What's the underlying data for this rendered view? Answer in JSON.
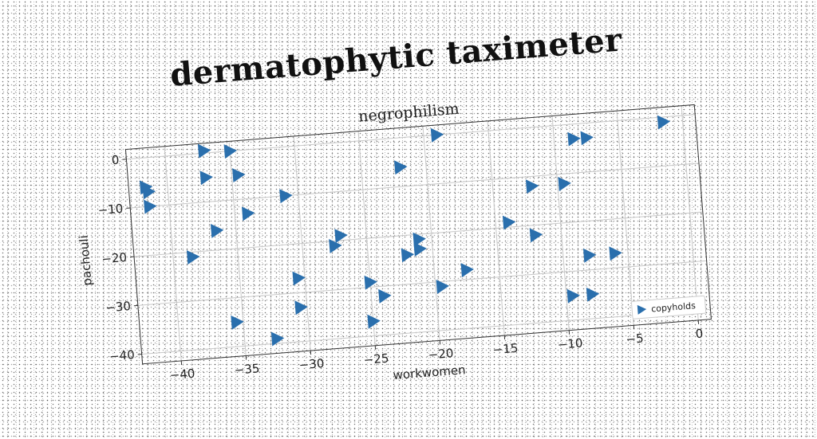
{
  "chart_data": {
    "type": "scatter",
    "title": "dermatophytic taximeter",
    "subtitle": "negrophilism",
    "xlabel": "workwomen",
    "ylabel": "pachouli",
    "xlim": [
      -43,
      1
    ],
    "ylim": [
      -42,
      2
    ],
    "xticks": [
      -40,
      -35,
      -30,
      -25,
      -20,
      -15,
      -10,
      -5,
      0
    ],
    "yticks": [
      0,
      -10,
      -20,
      -30,
      -40
    ],
    "grid": true,
    "legend_position": "bottom-right",
    "marker": "triangle-right",
    "color": "#2a6fad",
    "series": [
      {
        "name": "copyholds",
        "points": [
          [
            -37,
            0.5
          ],
          [
            -35,
            0
          ],
          [
            -19,
            0
          ],
          [
            -41.7,
            -6
          ],
          [
            -41.5,
            -7
          ],
          [
            -37,
            -5
          ],
          [
            -34.5,
            -5
          ],
          [
            -22,
            -6
          ],
          [
            -31,
            -10
          ],
          [
            -41.5,
            -10
          ],
          [
            -34,
            -13
          ],
          [
            -36.5,
            -16
          ],
          [
            -38.5,
            -21
          ],
          [
            -27.5,
            -21
          ],
          [
            -27,
            -19
          ],
          [
            -21,
            -21
          ],
          [
            -21,
            -23
          ],
          [
            -22,
            -24
          ],
          [
            -14,
            -19
          ],
          [
            -12,
            -22
          ],
          [
            -12,
            -12
          ],
          [
            -9.5,
            -12
          ],
          [
            -8.5,
            -3
          ],
          [
            -7.5,
            -3
          ],
          [
            -1.5,
            -1
          ],
          [
            -30.5,
            -27
          ],
          [
            -25,
            -29
          ],
          [
            -24,
            -32
          ],
          [
            -19.5,
            -31
          ],
          [
            -17.5,
            -28
          ],
          [
            -8,
            -27
          ],
          [
            -6,
            -27
          ],
          [
            -30.5,
            -33
          ],
          [
            -35.5,
            -35
          ],
          [
            -32.5,
            -39
          ],
          [
            -25,
            -37
          ],
          [
            -9.5,
            -35
          ],
          [
            -8,
            -35
          ]
        ]
      }
    ]
  }
}
